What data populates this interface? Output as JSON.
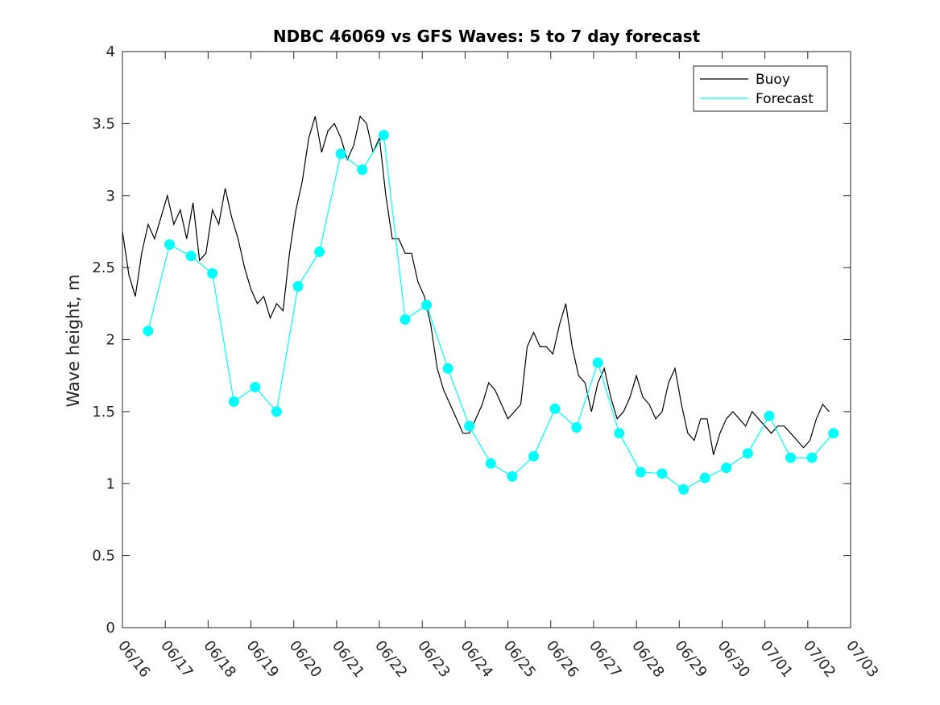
{
  "chart_data": {
    "type": "line",
    "title": "NDBC 46069 vs GFS Waves: 5 to 7 day forecast",
    "xlabel": "",
    "ylabel": "Wave height, m",
    "ylim": [
      0,
      4
    ],
    "yticks": [
      "0",
      "0.5",
      "1",
      "1.5",
      "2",
      "2.5",
      "3",
      "3.5",
      "4"
    ],
    "xlim_days": [
      0,
      17
    ],
    "xticks": [
      "06/16",
      "06/17",
      "06/18",
      "06/19",
      "06/20",
      "06/21",
      "06/22",
      "06/23",
      "06/24",
      "06/25",
      "06/26",
      "06/27",
      "06/28",
      "06/29",
      "06/30",
      "07/01",
      "07/02",
      "07/03"
    ],
    "grid": false,
    "legend_position": "top-right",
    "colors": {
      "buoy": "#000000",
      "forecast": "#00ffff"
    },
    "series": [
      {
        "name": "Buoy",
        "x": [
          0,
          0.15,
          0.3,
          0.45,
          0.6,
          0.75,
          0.9,
          1.05,
          1.2,
          1.35,
          1.5,
          1.65,
          1.8,
          1.95,
          2.1,
          2.25,
          2.4,
          2.55,
          2.7,
          2.85,
          3.0,
          3.15,
          3.3,
          3.45,
          3.6,
          3.75,
          3.9,
          4.05,
          4.2,
          4.35,
          4.5,
          4.65,
          4.8,
          4.95,
          5.1,
          5.25,
          5.4,
          5.55,
          5.7,
          5.85,
          6.0,
          6.15,
          6.3,
          6.45,
          6.6,
          6.75,
          6.9,
          7.05,
          7.2,
          7.35,
          7.5,
          7.65,
          7.8,
          7.95,
          8.1,
          8.25,
          8.4,
          8.55,
          8.7,
          8.85,
          9.0,
          9.15,
          9.3,
          9.45,
          9.6,
          9.75,
          9.9,
          10.05,
          10.2,
          10.35,
          10.5,
          10.65,
          10.8,
          10.95,
          11.1,
          11.25,
          11.4,
          11.55,
          11.7,
          11.85,
          12.0,
          12.15,
          12.3,
          12.45,
          12.6,
          12.75,
          12.9,
          13.05,
          13.2,
          13.35,
          13.5,
          13.65,
          13.8,
          13.95,
          14.1,
          14.25,
          14.4,
          14.55,
          14.7,
          14.85,
          15.0,
          15.15,
          15.3,
          15.45,
          15.6,
          15.75,
          15.9,
          16.05,
          16.2,
          16.35,
          16.5
        ],
        "values": [
          2.75,
          2.45,
          2.3,
          2.6,
          2.8,
          2.7,
          2.85,
          3.0,
          2.8,
          2.9,
          2.7,
          2.95,
          2.55,
          2.6,
          2.9,
          2.8,
          3.05,
          2.85,
          2.7,
          2.5,
          2.35,
          2.25,
          2.3,
          2.15,
          2.25,
          2.2,
          2.6,
          2.9,
          3.1,
          3.4,
          3.55,
          3.3,
          3.45,
          3.5,
          3.4,
          3.25,
          3.35,
          3.55,
          3.5,
          3.3,
          3.4,
          3.0,
          2.7,
          2.7,
          2.6,
          2.6,
          2.4,
          2.3,
          2.1,
          1.8,
          1.65,
          1.55,
          1.45,
          1.35,
          1.35,
          1.45,
          1.55,
          1.7,
          1.65,
          1.55,
          1.45,
          1.5,
          1.55,
          1.95,
          2.05,
          1.95,
          1.95,
          1.9,
          2.1,
          2.25,
          1.95,
          1.75,
          1.7,
          1.5,
          1.7,
          1.8,
          1.6,
          1.45,
          1.5,
          1.6,
          1.75,
          1.6,
          1.55,
          1.45,
          1.5,
          1.7,
          1.8,
          1.55,
          1.35,
          1.3,
          1.45,
          1.45,
          1.2,
          1.35,
          1.45,
          1.5,
          1.45,
          1.4,
          1.5,
          1.45,
          1.4,
          1.35,
          1.4,
          1.4,
          1.35,
          1.3,
          1.25,
          1.3,
          1.45,
          1.55,
          1.5
        ]
      },
      {
        "name": "Forecast",
        "x": [
          0.6,
          1.1,
          1.6,
          2.1,
          2.6,
          3.1,
          3.6,
          4.1,
          4.6,
          5.1,
          5.6,
          6.1,
          6.6,
          7.1,
          7.6,
          8.1,
          8.6,
          9.1,
          9.6,
          10.1,
          10.6,
          11.1,
          11.6,
          12.1,
          12.6,
          13.1,
          13.6,
          14.1,
          14.6,
          15.1,
          15.6,
          16.1,
          16.6
        ],
        "values": [
          2.06,
          2.66,
          2.58,
          2.46,
          1.57,
          1.67,
          1.5,
          2.37,
          2.61,
          3.29,
          3.18,
          3.42,
          2.14,
          2.24,
          1.8,
          1.4,
          1.14,
          1.05,
          1.19,
          1.52,
          1.39,
          1.84,
          1.35,
          1.08,
          1.07,
          0.96,
          1.04,
          1.11,
          1.21,
          1.47,
          1.18,
          1.18,
          1.35
        ]
      }
    ]
  }
}
